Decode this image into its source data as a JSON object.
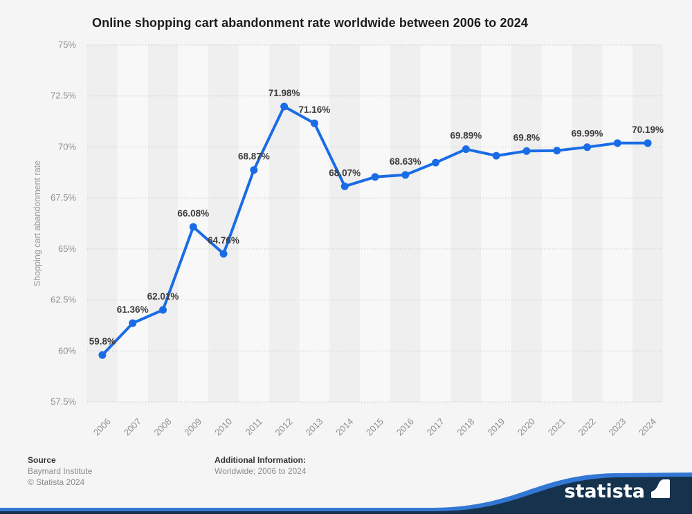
{
  "title": "Online shopping cart abandonment rate worldwide between 2006 to 2024",
  "chart_data": {
    "type": "line",
    "title": "Online shopping cart abandonment rate worldwide between 2006 to 2024",
    "x": [
      "2006",
      "2007",
      "2008",
      "2009",
      "2010",
      "2011",
      "2012",
      "2013",
      "2014",
      "2015",
      "2016",
      "2017",
      "2018",
      "2019",
      "2020",
      "2021",
      "2022",
      "2023",
      "2024"
    ],
    "values": [
      59.8,
      61.36,
      62.01,
      66.08,
      64.76,
      68.87,
      71.98,
      71.16,
      68.07,
      68.53,
      68.63,
      69.23,
      69.89,
      69.57,
      69.8,
      69.82,
      69.99,
      70.19,
      70.19
    ],
    "point_labels": [
      "59.8%",
      "61.36%",
      "62.01%",
      "66.08%",
      "64.76%",
      "68.87%",
      "71.98%",
      "71.16%",
      "68.07%",
      null,
      "68.63%",
      null,
      "69.89%",
      null,
      "69.8%",
      null,
      "69.99%",
      null,
      "70.19%"
    ],
    "xlabel": "",
    "ylabel": "Shopping cart abandonment rate",
    "ylim": [
      57.5,
      75
    ],
    "yticks": [
      {
        "value": 75,
        "label": "75%"
      },
      {
        "value": 72.5,
        "label": "72.5%"
      },
      {
        "value": 70,
        "label": "70%"
      },
      {
        "value": 67.5,
        "label": "67.5%"
      },
      {
        "value": 65,
        "label": "65%"
      },
      {
        "value": 62.5,
        "label": "62.5%"
      },
      {
        "value": 60,
        "label": "60%"
      },
      {
        "value": 57.5,
        "label": "57.5%"
      }
    ],
    "grid": "horizontal-dotted",
    "legend": "none",
    "line_color": "#1a6ce6"
  },
  "footer": {
    "source_label": "Source",
    "source_name": "Baymard Institute",
    "copyright": "© Statista 2024",
    "additional_label": "Additional Information:",
    "additional_value": "Worldwide; 2006 to 2024"
  },
  "branding": {
    "wordmark": "statista",
    "navy": "#16334e",
    "wave_blue": "#3377d4"
  }
}
